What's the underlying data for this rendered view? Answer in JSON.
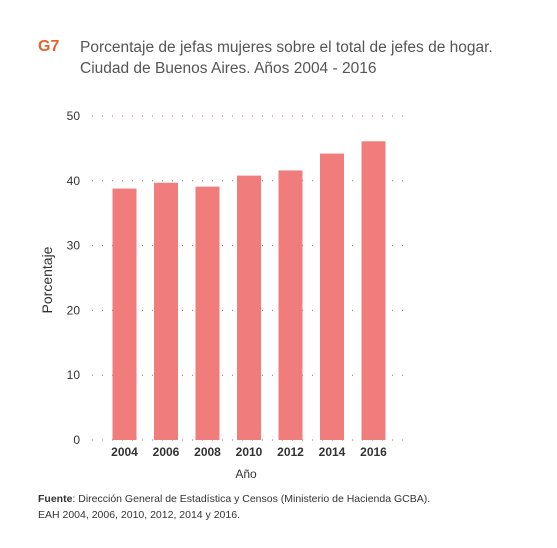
{
  "figure": {
    "id": "G7",
    "title_line1": "Porcentaje de jefas mujeres sobre el total de jefes de hogar.",
    "title_line2": "Ciudad de Buenos Aires. Años 2004 - 2016"
  },
  "source": {
    "label": "Fuente",
    "text": ": Dirección General de Estadística y Censos (Ministerio de Hacienda GCBA).",
    "text_line2": "EAH 2004, 2006, 2010, 2012, 2014 y 2016."
  },
  "colors": {
    "bar": "#f07c7b",
    "grid": "#d9534f",
    "accent": "#e8612c"
  },
  "chart_data": {
    "type": "bar",
    "categories": [
      "2004",
      "2006",
      "2008",
      "2010",
      "2012",
      "2014",
      "2016"
    ],
    "values": [
      38.8,
      39.7,
      39.1,
      40.8,
      41.6,
      44.2,
      46.1
    ],
    "xlabel": "Año",
    "ylabel": "Porcentaje",
    "ylim": [
      0,
      50
    ],
    "yticks": [
      0,
      10,
      20,
      30,
      40,
      50
    ],
    "grid": true
  }
}
